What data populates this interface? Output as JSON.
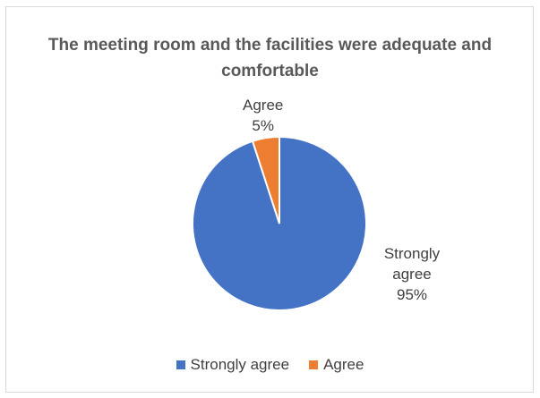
{
  "chart_data": {
    "type": "pie",
    "title": "The meeting room and the facilities were adequate and comfortable",
    "categories": [
      "Strongly agree",
      "Agree"
    ],
    "values": [
      95,
      5
    ],
    "value_labels": [
      "95%",
      "5%"
    ],
    "colors": [
      "#4472C4",
      "#ED7D31"
    ],
    "legend_position": "bottom"
  }
}
